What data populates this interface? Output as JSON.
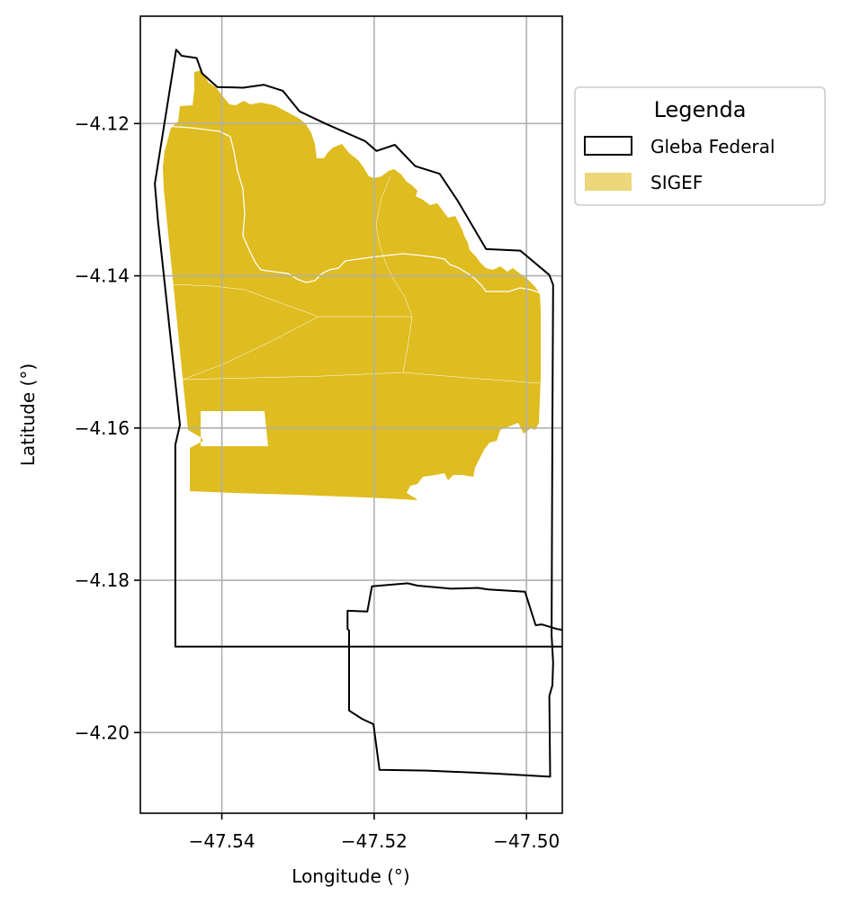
{
  "chart_data": {
    "type": "map",
    "xlabel": "Longitude (°)",
    "ylabel": "Latitude (°)",
    "xlim": [
      -47.5507,
      -47.4953
    ],
    "ylim": [
      -4.2106,
      -4.1059
    ],
    "x_ticks": [
      -47.54,
      -47.52,
      -47.5
    ],
    "x_tick_labels": [
      "−47.54",
      "−47.52",
      "−47.50"
    ],
    "y_ticks": [
      -4.12,
      -4.14,
      -4.16,
      -4.18,
      -4.2
    ],
    "y_tick_labels": [
      "−4.12",
      "−4.14",
      "−4.16",
      "−4.18",
      "−4.20"
    ],
    "grid": true,
    "legend": {
      "title": "Legenda",
      "placement": "outside upper right",
      "entries": [
        {
          "label": "Gleba Federal",
          "style": "outline",
          "color": "#000000"
        },
        {
          "label": "SIGEF",
          "style": "fill",
          "color": "#dfbc1f"
        }
      ]
    },
    "colors": {
      "sigef_fill": "#dfbc1f",
      "sigef_edge": "#ffffff",
      "gleba_edge": "#000000",
      "grid": "#b0b0b0"
    },
    "layers": [
      {
        "name": "Gleba Federal",
        "style": "outline",
        "coordinates": [
          [
            -47.5457,
            -4.1106
          ],
          [
            -47.5453,
            -4.1111
          ],
          [
            -47.5433,
            -4.1114
          ],
          [
            -47.5426,
            -4.1134
          ],
          [
            -47.5406,
            -4.1152
          ],
          [
            -47.5372,
            -4.1153
          ],
          [
            -47.5345,
            -4.1149
          ],
          [
            -47.532,
            -4.1157
          ],
          [
            -47.5298,
            -4.1184
          ],
          [
            -47.5262,
            -4.1201
          ],
          [
            -47.5212,
            -4.1223
          ],
          [
            -47.5197,
            -4.1236
          ],
          [
            -47.5173,
            -4.1228
          ],
          [
            -47.5146,
            -4.1256
          ],
          [
            -47.5114,
            -4.1266
          ],
          [
            -47.509,
            -4.1302
          ],
          [
            -47.5053,
            -4.1365
          ],
          [
            -47.5008,
            -4.1367
          ],
          [
            -47.497,
            -4.1399
          ],
          [
            -47.4965,
            -4.1412
          ],
          [
            -47.4966,
            -4.1593
          ],
          [
            -47.4967,
            -4.1872
          ],
          [
            -47.4965,
            -4.1908
          ],
          [
            -47.4966,
            -4.1938
          ],
          [
            -47.497,
            -4.1952
          ],
          [
            -47.4969,
            -4.2058
          ],
          [
            -47.5039,
            -4.2054
          ],
          [
            -47.513,
            -4.205
          ],
          [
            -47.5193,
            -4.2049
          ],
          [
            -47.5201,
            -4.1989
          ],
          [
            -47.5216,
            -4.1982
          ],
          [
            -47.5233,
            -4.1971
          ],
          [
            -47.5233,
            -4.1866
          ],
          [
            -47.5235,
            -4.1864
          ],
          [
            -47.5235,
            -4.184
          ],
          [
            -47.5209,
            -4.1841
          ],
          [
            -47.5203,
            -4.1808
          ],
          [
            -47.5156,
            -4.1804
          ],
          [
            -47.5143,
            -4.1807
          ],
          [
            -47.5099,
            -4.1811
          ],
          [
            -47.5064,
            -4.181
          ],
          [
            -47.505,
            -4.1812
          ],
          [
            -47.5002,
            -4.1815
          ],
          [
            -47.4988,
            -4.1859
          ],
          [
            -47.498,
            -4.1858
          ],
          [
            -47.496,
            -4.1864
          ],
          [
            -47.493,
            -4.1869
          ],
          [
            -47.4904,
            -4.1874
          ],
          [
            -47.4883,
            -4.1886
          ],
          [
            -47.4866,
            -4.1891
          ],
          [
            -47.485,
            -4.1892
          ],
          [
            -47.4846,
            -4.1898
          ],
          [
            -47.4788,
            -4.1886
          ],
          [
            -47.4777,
            -4.1887
          ],
          [
            -47.5461,
            -4.1887
          ],
          [
            -47.5461,
            -4.1622
          ],
          [
            -47.5455,
            -4.1596
          ],
          [
            -47.5484,
            -4.1327
          ],
          [
            -47.5488,
            -4.1279
          ],
          [
            -47.546,
            -4.1103
          ]
        ]
      },
      {
        "name": "SIGEF",
        "style": "fill",
        "parcels": 12
      }
    ]
  }
}
